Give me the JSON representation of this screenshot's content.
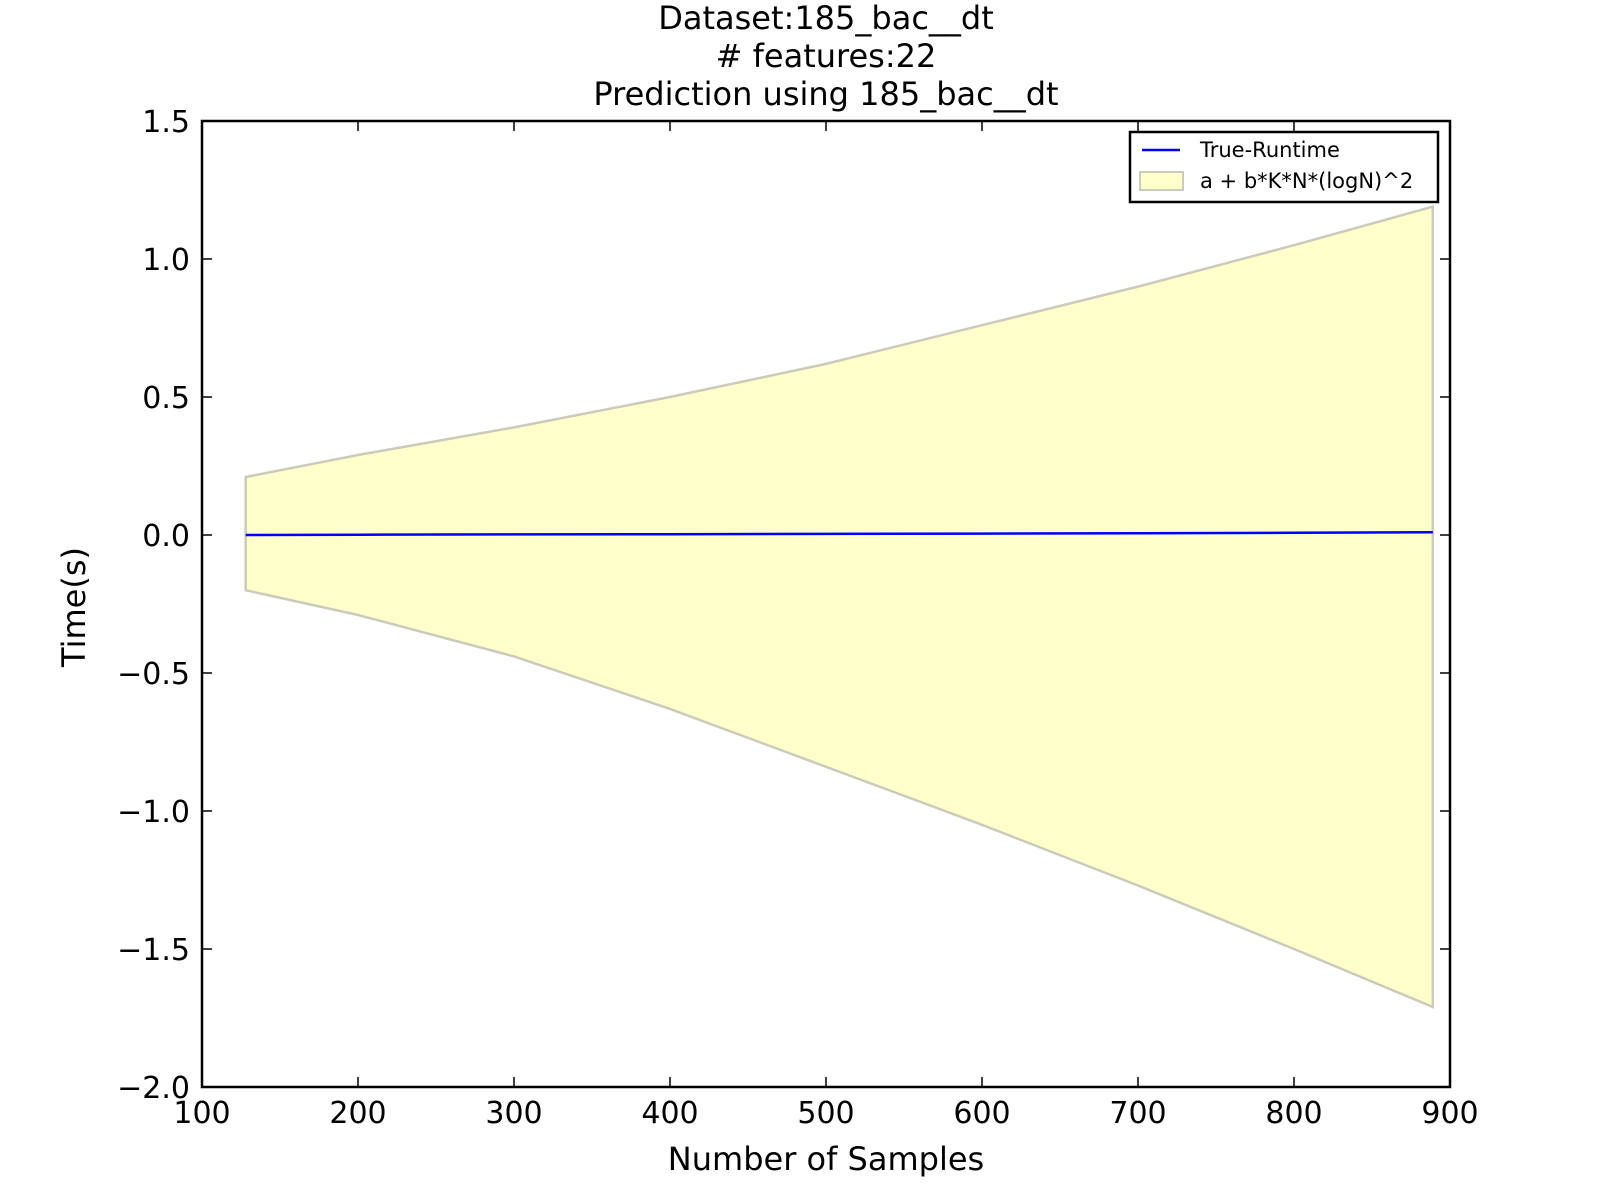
{
  "chart_data": {
    "type": "area",
    "title_lines": [
      "Dataset:185_bac__dt",
      "# features:22",
      "Prediction using 185_bac__dt"
    ],
    "xlabel": "Number of Samples",
    "ylabel": "Time(s)",
    "xlim": [
      100,
      900
    ],
    "ylim": [
      -2.0,
      1.5
    ],
    "xticks": [
      100,
      200,
      300,
      400,
      500,
      600,
      700,
      800,
      900
    ],
    "xtick_labels": [
      "100",
      "200",
      "300",
      "400",
      "500",
      "600",
      "700",
      "800",
      "900"
    ],
    "yticks": [
      1.5,
      1.0,
      0.5,
      0.0,
      -0.5,
      -1.0,
      -1.5,
      -2.0
    ],
    "ytick_labels": [
      "1.5",
      "1.0",
      "0.5",
      "0.0",
      "−0.5",
      "−1.0",
      "−1.5",
      "−2.0"
    ],
    "grid": false,
    "legend_position": "top-right",
    "series": [
      {
        "name": "True-Runtime",
        "kind": "line",
        "color": "#0000ff",
        "x": [
          128,
          200,
          300,
          400,
          500,
          600,
          700,
          800,
          889
        ],
        "y": [
          0.0,
          0.001,
          0.002,
          0.003,
          0.004,
          0.005,
          0.006,
          0.008,
          0.01
        ]
      },
      {
        "name": "a + b*K*N*(logN)^2",
        "kind": "band",
        "fill_color": "#ffffcc",
        "edge_color": "#cccbbb",
        "x": [
          128,
          200,
          300,
          400,
          500,
          600,
          700,
          800,
          889
        ],
        "upper": [
          0.21,
          0.29,
          0.39,
          0.5,
          0.62,
          0.76,
          0.9,
          1.05,
          1.19
        ],
        "lower": [
          -0.2,
          -0.29,
          -0.44,
          -0.63,
          -0.84,
          -1.05,
          -1.27,
          -1.5,
          -1.71
        ]
      }
    ]
  }
}
